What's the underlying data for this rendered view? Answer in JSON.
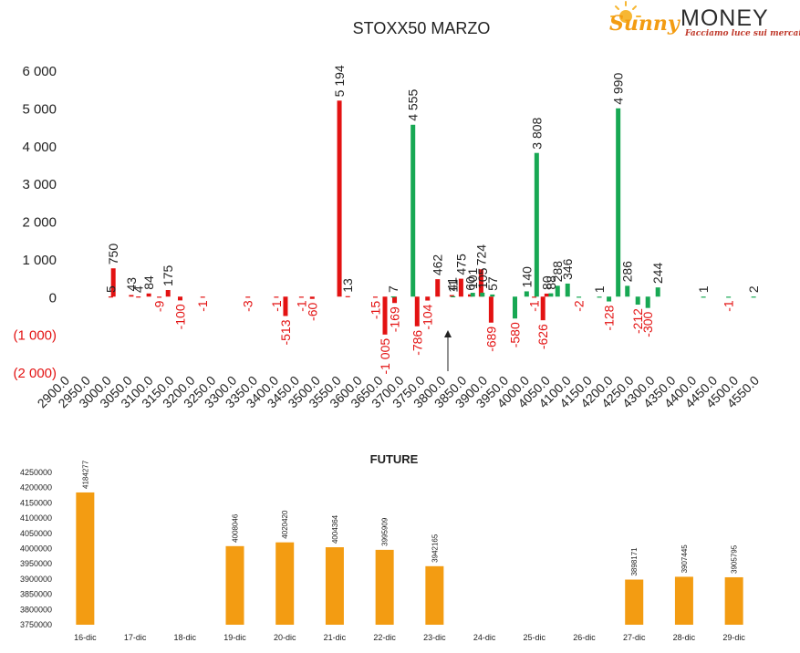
{
  "brand": {
    "name_left": "Sunny",
    "name_right": "MONEY",
    "tagline": "Facciamo luce sui mercati",
    "color_left": "#f39c12",
    "color_right": "#2c2c2c",
    "tagline_color": "#c0392b"
  },
  "colors": {
    "negative": "#e31212",
    "positive": "#17a853",
    "future": "#f39c12",
    "negative_label": "#e31212",
    "text": "#222222"
  },
  "chart_data": [
    {
      "type": "bar",
      "title": "STOXX50 MARZO",
      "xlabel": "",
      "ylabel": "",
      "ylim": [
        -2000,
        6000
      ],
      "yticks": [
        {
          "value": 6000,
          "label": "6 000"
        },
        {
          "value": 5000,
          "label": "5 000"
        },
        {
          "value": 4000,
          "label": "4 000"
        },
        {
          "value": 3000,
          "label": "3 000"
        },
        {
          "value": 2000,
          "label": "2 000"
        },
        {
          "value": 1000,
          "label": "1 000"
        },
        {
          "value": 0,
          "label": "0"
        },
        {
          "value": -1000,
          "label": "(1 000)"
        },
        {
          "value": -2000,
          "label": "(2 000)"
        }
      ],
      "categories": [
        "2900.0",
        "2950.0",
        "3000.0",
        "3050.0",
        "3100.0",
        "3150.0",
        "3200.0",
        "3250.0",
        "3300.0",
        "3350.0",
        "3400.0",
        "3450.0",
        "3500.0",
        "3550.0",
        "3600.0",
        "3650.0",
        "3700.0",
        "3750.0",
        "3800.0",
        "3850.0",
        "3900.0",
        "3950.0",
        "4000.0",
        "4050.0",
        "4100.0",
        "4150.0",
        "4200.0",
        "4250.0",
        "4300.0",
        "4350.0",
        "4400.0",
        "4450.0",
        "4500.0",
        "4550.0"
      ],
      "grid": false,
      "annotation": "upward arrow below the 3800.0–3850.0 strikes",
      "series": [
        {
          "color": "red",
          "points": [
            {
              "x": 2997,
              "y": 5,
              "label": "5"
            },
            {
              "x": 3003,
              "y": 750,
              "label": "750"
            },
            {
              "x": 3046,
              "y": 43,
              "label": "43"
            },
            {
              "x": 3063,
              "y": 4,
              "label": "4"
            },
            {
              "x": 3088,
              "y": 84,
              "label": "84"
            },
            {
              "x": 3113,
              "y": -9,
              "label": "-9"
            },
            {
              "x": 3134,
              "y": 175,
              "label": "175"
            },
            {
              "x": 3163,
              "y": -100,
              "label": "-100"
            },
            {
              "x": 3217,
              "y": -1,
              "label": "-1"
            },
            {
              "x": 3325,
              "y": -3,
              "label": "-3"
            },
            {
              "x": 3393,
              "y": -1,
              "label": "-1"
            },
            {
              "x": 3415,
              "y": -513,
              "label": "-513"
            },
            {
              "x": 3453,
              "y": -1,
              "label": "-1"
            },
            {
              "x": 3479,
              "y": -60,
              "label": "-60"
            },
            {
              "x": 3544,
              "y": 5194,
              "label": "5 194"
            },
            {
              "x": 3564,
              "y": 13,
              "label": "13"
            },
            {
              "x": 3630,
              "y": -15,
              "label": "-15"
            },
            {
              "x": 3653,
              "y": -1005,
              "label": "-1 005"
            },
            {
              "x": 3676,
              "y": -169,
              "label": "-169"
            },
            {
              "x": 3730,
              "y": -786,
              "label": "-786"
            },
            {
              "x": 3755,
              "y": -104,
              "label": "-104"
            },
            {
              "x": 3779,
              "y": 462,
              "label": "462"
            },
            {
              "x": 3813,
              "y": 41,
              "label": "41"
            },
            {
              "x": 3835,
              "y": 475,
              "label": "475"
            },
            {
              "x": 3857,
              "y": 60,
              "label": "60"
            },
            {
              "x": 3883,
              "y": 724,
              "label": "724"
            },
            {
              "x": 3907,
              "y": -689,
              "label": "-689"
            },
            {
              "x": 4010,
              "y": -1,
              "label": "-1"
            },
            {
              "x": 4031,
              "y": -626,
              "label": "-626"
            },
            {
              "x": 4040,
              "y": 80,
              "label": "80"
            }
          ]
        },
        {
          "color": "green",
          "points": [
            {
              "x": 3673,
              "y": 7,
              "label": "7"
            },
            {
              "x": 3720,
              "y": 4555,
              "label": "4 555"
            },
            {
              "x": 3816,
              "y": 11,
              "label": "11"
            },
            {
              "x": 3863,
              "y": 101,
              "label": "101"
            },
            {
              "x": 3886,
              "y": 105,
              "label": "105"
            },
            {
              "x": 3910,
              "y": 57,
              "label": "57"
            },
            {
              "x": 3964,
              "y": -580,
              "label": "-580"
            },
            {
              "x": 3992,
              "y": 140,
              "label": "140"
            },
            {
              "x": 4016,
              "y": 3808,
              "label": "3 808"
            },
            {
              "x": 4050,
              "y": 88,
              "label": "88"
            },
            {
              "x": 4066,
              "y": 288,
              "label": "288"
            },
            {
              "x": 4090,
              "y": 346,
              "label": "346"
            },
            {
              "x": 4117,
              "y": -2,
              "label": "-2"
            },
            {
              "x": 4166,
              "y": 1,
              "label": "1"
            },
            {
              "x": 4189,
              "y": -128,
              "label": "-128"
            },
            {
              "x": 4211,
              "y": 4990,
              "label": "4 990"
            },
            {
              "x": 4233,
              "y": 286,
              "label": "286"
            },
            {
              "x": 4258,
              "y": -212,
              "label": "-212"
            },
            {
              "x": 4282,
              "y": -300,
              "label": "-300"
            },
            {
              "x": 4306,
              "y": 244,
              "label": "244"
            },
            {
              "x": 4415,
              "y": 1,
              "label": "1"
            },
            {
              "x": 4475,
              "y": -1,
              "label": "-1"
            },
            {
              "x": 4535,
              "y": 2,
              "label": "2"
            }
          ]
        }
      ]
    },
    {
      "type": "bar",
      "title": "FUTURE",
      "xlabel": "",
      "ylabel": "",
      "ylim": [
        3750000,
        4250000
      ],
      "yticks": [
        4250000,
        4200000,
        4150000,
        4100000,
        4050000,
        4000000,
        3950000,
        3900000,
        3850000,
        3800000,
        3750000
      ],
      "categories": [
        "16-dic",
        "17-dic",
        "18-dic",
        "19-dic",
        "20-dic",
        "21-dic",
        "22-dic",
        "23-dic",
        "24-dic",
        "25-dic",
        "26-dic",
        "27-dic",
        "28-dic",
        "29-dic"
      ],
      "values": [
        4184277,
        null,
        null,
        4008046,
        4020420,
        4004364,
        3995909,
        3942165,
        null,
        null,
        null,
        3898171,
        3907445,
        3905795
      ],
      "grid": false
    }
  ]
}
